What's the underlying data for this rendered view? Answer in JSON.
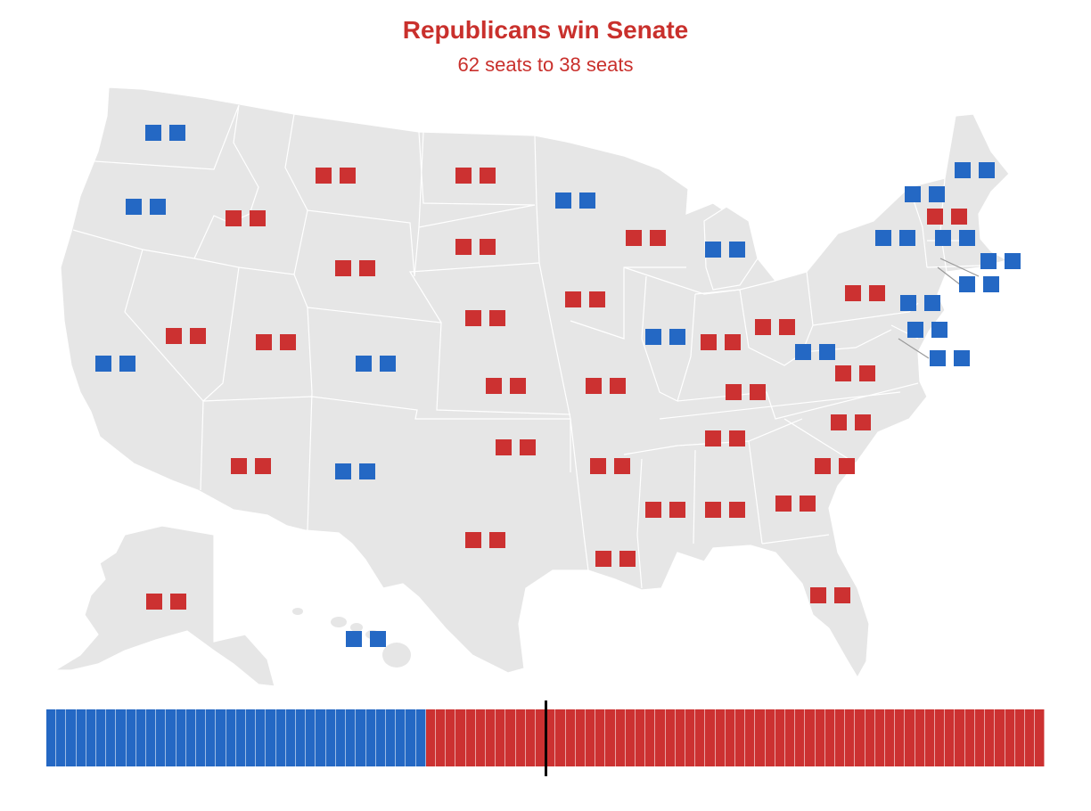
{
  "headline": {
    "title": "Republicans win Senate",
    "subtitle": "62 seats to 38 seats"
  },
  "colors": {
    "dem": "#2468c4",
    "rep": "#cc3131",
    "land": "#e6e6e6",
    "border": "#ffffff",
    "leader": "#999999",
    "majority_line": "#000000"
  },
  "totals": {
    "dem_seats": 38,
    "rep_seats": 62,
    "total_seats": 100,
    "majority_seat": 51
  },
  "states": [
    {
      "state": "WA",
      "seats": [
        "D",
        "D"
      ]
    },
    {
      "state": "OR",
      "seats": [
        "D",
        "D"
      ]
    },
    {
      "state": "CA",
      "seats": [
        "D",
        "D"
      ]
    },
    {
      "state": "ID",
      "seats": [
        "R",
        "R"
      ]
    },
    {
      "state": "NV",
      "seats": [
        "R",
        "R"
      ]
    },
    {
      "state": "MT",
      "seats": [
        "R",
        "R"
      ]
    },
    {
      "state": "WY",
      "seats": [
        "R",
        "R"
      ]
    },
    {
      "state": "UT",
      "seats": [
        "R",
        "R"
      ]
    },
    {
      "state": "CO",
      "seats": [
        "D",
        "D"
      ]
    },
    {
      "state": "AZ",
      "seats": [
        "R",
        "R"
      ]
    },
    {
      "state": "NM",
      "seats": [
        "D",
        "D"
      ]
    },
    {
      "state": "ND",
      "seats": [
        "R",
        "R"
      ]
    },
    {
      "state": "SD",
      "seats": [
        "R",
        "R"
      ]
    },
    {
      "state": "NE",
      "seats": [
        "R",
        "R"
      ]
    },
    {
      "state": "KS",
      "seats": [
        "R",
        "R"
      ]
    },
    {
      "state": "OK",
      "seats": [
        "R",
        "R"
      ]
    },
    {
      "state": "TX",
      "seats": [
        "R",
        "R"
      ]
    },
    {
      "state": "MN",
      "seats": [
        "D",
        "D"
      ]
    },
    {
      "state": "IA",
      "seats": [
        "R",
        "R"
      ]
    },
    {
      "state": "MO",
      "seats": [
        "R",
        "R"
      ]
    },
    {
      "state": "AR",
      "seats": [
        "R",
        "R"
      ]
    },
    {
      "state": "LA",
      "seats": [
        "R",
        "R"
      ]
    },
    {
      "state": "WI",
      "seats": [
        "R",
        "R"
      ]
    },
    {
      "state": "IL",
      "seats": [
        "D",
        "D"
      ]
    },
    {
      "state": "MI",
      "seats": [
        "D",
        "D"
      ]
    },
    {
      "state": "IN",
      "seats": [
        "R",
        "R"
      ]
    },
    {
      "state": "OH",
      "seats": [
        "R",
        "R"
      ]
    },
    {
      "state": "KY",
      "seats": [
        "R",
        "R"
      ]
    },
    {
      "state": "TN",
      "seats": [
        "R",
        "R"
      ]
    },
    {
      "state": "MS",
      "seats": [
        "R",
        "R"
      ]
    },
    {
      "state": "AL",
      "seats": [
        "R",
        "R"
      ]
    },
    {
      "state": "GA",
      "seats": [
        "R",
        "R"
      ]
    },
    {
      "state": "FL",
      "seats": [
        "R",
        "R"
      ]
    },
    {
      "state": "SC",
      "seats": [
        "R",
        "R"
      ]
    },
    {
      "state": "NC",
      "seats": [
        "R",
        "R"
      ]
    },
    {
      "state": "VA",
      "seats": [
        "D",
        "D"
      ]
    },
    {
      "state": "WV",
      "seats": [
        "R",
        "R"
      ]
    },
    {
      "state": "PA",
      "seats": [
        "R",
        "R"
      ]
    },
    {
      "state": "NY",
      "seats": [
        "D",
        "D"
      ]
    },
    {
      "state": "VT",
      "seats": [
        "D",
        "D"
      ]
    },
    {
      "state": "NH",
      "seats": [
        "R",
        "R"
      ]
    },
    {
      "state": "ME",
      "seats": [
        "D",
        "D"
      ]
    },
    {
      "state": "MA",
      "seats": [
        "D",
        "D"
      ]
    },
    {
      "state": "RI",
      "seats": [
        "D",
        "D"
      ]
    },
    {
      "state": "CT",
      "seats": [
        "D",
        "D"
      ]
    },
    {
      "state": "NJ",
      "seats": [
        "D",
        "D"
      ]
    },
    {
      "state": "DE",
      "seats": [
        "D",
        "D"
      ]
    },
    {
      "state": "MD",
      "seats": [
        "D",
        "D"
      ]
    },
    {
      "state": "AK",
      "seats": [
        "R",
        "R"
      ]
    },
    {
      "state": "HI",
      "seats": [
        "D",
        "D"
      ]
    }
  ]
}
